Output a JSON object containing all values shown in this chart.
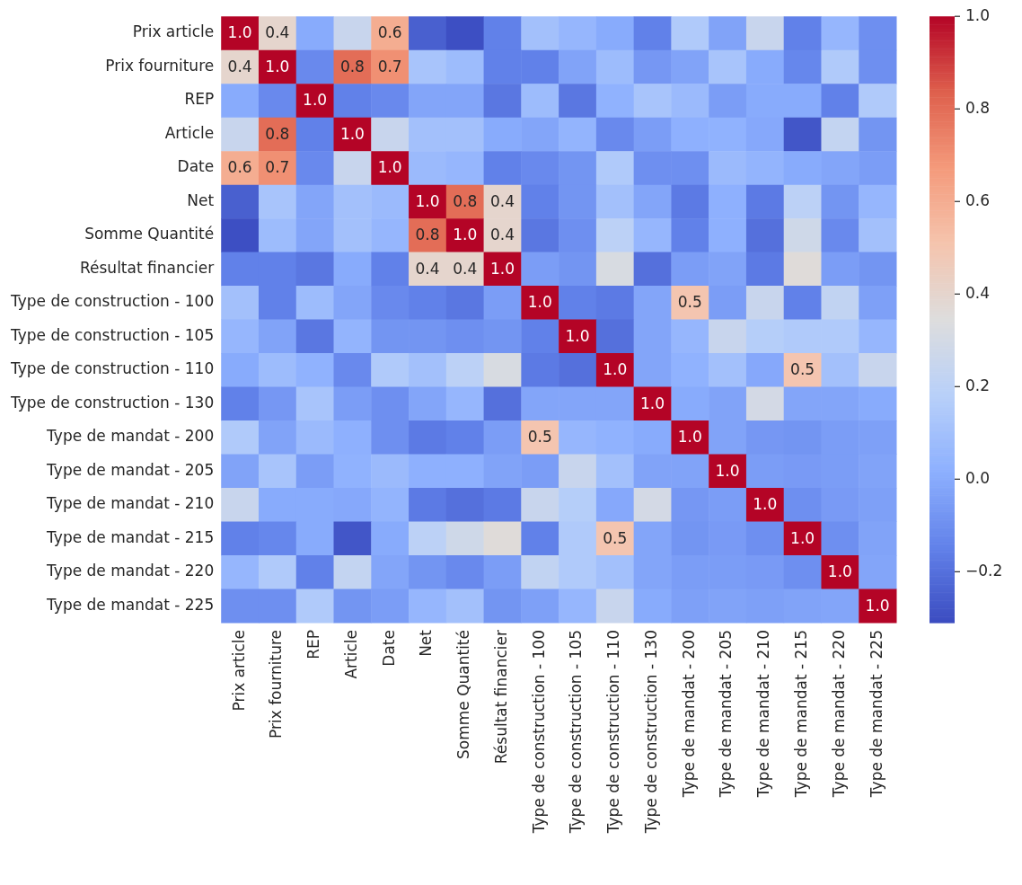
{
  "chart_data": {
    "type": "heatmap",
    "categories": [
      "Prix article",
      "Prix fourniture",
      "REP",
      "Article",
      "Date",
      "Net",
      "Somme Quantité",
      "Résultat financier",
      "Type de construction - 100",
      "Type de construction - 105",
      "Type de construction - 110",
      "Type de construction - 130",
      "Type de mandat - 200",
      "Type de mandat - 205",
      "Type de mandat - 210",
      "Type de mandat - 215",
      "Type de mandat - 220",
      "Type de mandat - 225"
    ],
    "y_categories": [
      "Prix article",
      "Prix fourniture",
      "REP",
      "Article",
      "Date",
      "Net",
      "Somme Quantité",
      "Résultat financier",
      "Type de construction - 100",
      "Type de construction - 105",
      "Type de construction - 110",
      "Type de construction - 130",
      "Type de mandat - 200",
      "Type de mandat - 205",
      "Type de mandat - 210",
      "Type de mandat - 215",
      "Type de mandat - 220",
      "Type de mandat - 225"
    ],
    "cells": [
      [
        1.0,
        0.4,
        0.0,
        0.25,
        0.6,
        -0.25,
        -0.3,
        -0.15,
        0.1,
        0.05,
        0.0,
        -0.15,
        0.15,
        -0.03,
        0.25,
        -0.15,
        0.05,
        -0.1
      ],
      [
        0.4,
        1.0,
        -0.12,
        0.8,
        0.7,
        0.12,
        0.08,
        -0.15,
        -0.15,
        -0.03,
        0.08,
        -0.07,
        -0.03,
        0.12,
        0.0,
        -0.13,
        0.15,
        -0.1
      ],
      [
        0.0,
        -0.12,
        1.0,
        -0.15,
        -0.12,
        -0.02,
        -0.02,
        -0.18,
        0.08,
        -0.18,
        0.03,
        0.12,
        0.07,
        -0.05,
        0.0,
        0.0,
        -0.15,
        0.15
      ],
      [
        0.25,
        0.8,
        -0.15,
        1.0,
        0.25,
        0.1,
        0.1,
        0.0,
        -0.02,
        0.04,
        -0.12,
        -0.05,
        0.02,
        0.03,
        -0.01,
        -0.28,
        0.23,
        -0.08
      ],
      [
        0.6,
        0.7,
        -0.12,
        0.25,
        1.0,
        0.07,
        0.05,
        -0.15,
        -0.12,
        -0.08,
        0.15,
        -0.1,
        -0.1,
        0.07,
        0.04,
        0.0,
        -0.02,
        -0.05
      ],
      [
        -0.25,
        0.12,
        -0.02,
        0.1,
        0.07,
        1.0,
        0.8,
        0.4,
        -0.15,
        -0.08,
        0.1,
        -0.02,
        -0.17,
        0.02,
        -0.17,
        0.2,
        -0.08,
        0.05
      ],
      [
        -0.3,
        0.08,
        -0.02,
        0.1,
        0.05,
        0.8,
        1.0,
        0.4,
        -0.18,
        -0.1,
        0.2,
        0.05,
        -0.15,
        0.02,
        -0.2,
        0.28,
        -0.12,
        0.1
      ],
      [
        -0.15,
        -0.15,
        -0.18,
        0.0,
        -0.15,
        0.4,
        0.4,
        1.0,
        -0.05,
        -0.08,
        0.32,
        -0.2,
        -0.05,
        -0.03,
        -0.17,
        0.36,
        -0.05,
        -0.08
      ],
      [
        0.1,
        -0.15,
        0.08,
        -0.02,
        -0.12,
        -0.15,
        -0.18,
        -0.05,
        1.0,
        -0.15,
        -0.17,
        -0.02,
        0.5,
        -0.05,
        0.25,
        -0.15,
        0.22,
        -0.04
      ],
      [
        0.05,
        -0.03,
        -0.18,
        0.04,
        -0.08,
        -0.08,
        -0.1,
        -0.08,
        -0.15,
        1.0,
        -0.2,
        -0.02,
        0.05,
        0.25,
        0.17,
        0.15,
        0.15,
        0.05
      ],
      [
        0.0,
        0.08,
        0.03,
        -0.12,
        0.15,
        0.1,
        0.2,
        0.32,
        -0.17,
        -0.2,
        1.0,
        -0.02,
        0.03,
        0.1,
        -0.01,
        0.5,
        0.1,
        0.25
      ],
      [
        -0.15,
        -0.07,
        0.12,
        -0.05,
        -0.1,
        -0.02,
        0.05,
        -0.2,
        -0.02,
        -0.02,
        -0.02,
        1.0,
        0.0,
        -0.03,
        0.3,
        -0.02,
        -0.02,
        0.0
      ],
      [
        0.15,
        -0.03,
        0.07,
        0.02,
        -0.1,
        -0.17,
        -0.15,
        -0.05,
        0.5,
        0.05,
        0.03,
        0.0,
        1.0,
        -0.03,
        -0.07,
        -0.08,
        -0.05,
        -0.04
      ],
      [
        -0.03,
        0.12,
        -0.05,
        0.03,
        0.07,
        0.02,
        0.02,
        -0.03,
        -0.05,
        0.25,
        0.1,
        -0.03,
        -0.03,
        1.0,
        -0.05,
        -0.06,
        -0.05,
        -0.03
      ],
      [
        0.25,
        0.0,
        0.0,
        -0.01,
        0.04,
        -0.17,
        -0.2,
        -0.17,
        0.25,
        0.17,
        -0.01,
        0.3,
        -0.07,
        -0.05,
        1.0,
        -0.1,
        -0.06,
        -0.04
      ],
      [
        -0.15,
        -0.13,
        0.0,
        -0.28,
        0.0,
        0.2,
        0.28,
        0.36,
        -0.15,
        0.15,
        0.5,
        -0.02,
        -0.08,
        -0.06,
        -0.1,
        1.0,
        -0.1,
        -0.03
      ],
      [
        0.05,
        0.15,
        -0.15,
        0.23,
        -0.02,
        -0.08,
        -0.12,
        -0.05,
        0.22,
        0.15,
        0.1,
        -0.02,
        -0.05,
        -0.05,
        -0.06,
        -0.1,
        1.0,
        -0.02
      ],
      [
        -0.1,
        -0.1,
        0.15,
        -0.08,
        -0.05,
        0.05,
        0.1,
        -0.08,
        -0.04,
        0.05,
        0.25,
        0.0,
        -0.04,
        -0.03,
        -0.04,
        -0.03,
        -0.02,
        1.0
      ]
    ],
    "cell_labels": [
      [
        "1.0",
        "0.4",
        null,
        null,
        "0.6",
        null,
        null,
        null,
        null,
        null,
        null,
        null,
        null,
        null,
        null,
        null,
        null,
        null
      ],
      [
        "0.4",
        "1.0",
        null,
        "0.8",
        "0.7",
        null,
        null,
        null,
        null,
        null,
        null,
        null,
        null,
        null,
        null,
        null,
        null,
        null
      ],
      [
        null,
        null,
        "1.0",
        null,
        null,
        null,
        null,
        null,
        null,
        null,
        null,
        null,
        null,
        null,
        null,
        null,
        null,
        null
      ],
      [
        null,
        "0.8",
        null,
        "1.0",
        null,
        null,
        null,
        null,
        null,
        null,
        null,
        null,
        null,
        null,
        null,
        null,
        null,
        null
      ],
      [
        "0.6",
        "0.7",
        null,
        null,
        "1.0",
        null,
        null,
        null,
        null,
        null,
        null,
        null,
        null,
        null,
        null,
        null,
        null,
        null
      ],
      [
        null,
        null,
        null,
        null,
        null,
        "1.0",
        "0.8",
        "0.4",
        null,
        null,
        null,
        null,
        null,
        null,
        null,
        null,
        null,
        null
      ],
      [
        null,
        null,
        null,
        null,
        null,
        "0.8",
        "1.0",
        "0.4",
        null,
        null,
        null,
        null,
        null,
        null,
        null,
        null,
        null,
        null
      ],
      [
        null,
        null,
        null,
        null,
        null,
        "0.4",
        "0.4",
        "1.0",
        null,
        null,
        null,
        null,
        null,
        null,
        null,
        null,
        null,
        null
      ],
      [
        null,
        null,
        null,
        null,
        null,
        null,
        null,
        null,
        "1.0",
        null,
        null,
        null,
        "0.5",
        null,
        null,
        null,
        null,
        null
      ],
      [
        null,
        null,
        null,
        null,
        null,
        null,
        null,
        null,
        null,
        "1.0",
        null,
        null,
        null,
        null,
        null,
        null,
        null,
        null
      ],
      [
        null,
        null,
        null,
        null,
        null,
        null,
        null,
        null,
        null,
        null,
        "1.0",
        null,
        null,
        null,
        null,
        "0.5",
        null,
        null
      ],
      [
        null,
        null,
        null,
        null,
        null,
        null,
        null,
        null,
        null,
        null,
        null,
        "1.0",
        null,
        null,
        null,
        null,
        null,
        null
      ],
      [
        null,
        null,
        null,
        null,
        null,
        null,
        null,
        null,
        "0.5",
        null,
        null,
        null,
        "1.0",
        null,
        null,
        null,
        null,
        null
      ],
      [
        null,
        null,
        null,
        null,
        null,
        null,
        null,
        null,
        null,
        null,
        null,
        null,
        null,
        "1.0",
        null,
        null,
        null,
        null
      ],
      [
        null,
        null,
        null,
        null,
        null,
        null,
        null,
        null,
        null,
        null,
        null,
        null,
        null,
        null,
        "1.0",
        null,
        null,
        null
      ],
      [
        null,
        null,
        null,
        null,
        null,
        null,
        null,
        null,
        null,
        null,
        "0.5",
        null,
        null,
        null,
        null,
        "1.0",
        null,
        null
      ],
      [
        null,
        null,
        null,
        null,
        null,
        null,
        null,
        null,
        null,
        null,
        null,
        null,
        null,
        null,
        null,
        null,
        "1.0",
        null
      ],
      [
        null,
        null,
        null,
        null,
        null,
        null,
        null,
        null,
        null,
        null,
        null,
        null,
        null,
        null,
        null,
        null,
        null,
        "1.0"
      ]
    ],
    "clim": [
      -0.31,
      1.0
    ],
    "cticks": [
      {
        "value": -0.2,
        "label": "−0.2"
      },
      {
        "value": 0,
        "label": "0.0"
      },
      {
        "value": 0.2,
        "label": "0.2"
      },
      {
        "value": 0.4,
        "label": "0.4"
      },
      {
        "value": 0.6,
        "label": "0.6"
      },
      {
        "value": 0.8,
        "label": "0.8"
      },
      {
        "value": 1.0,
        "label": "1.0"
      }
    ]
  }
}
